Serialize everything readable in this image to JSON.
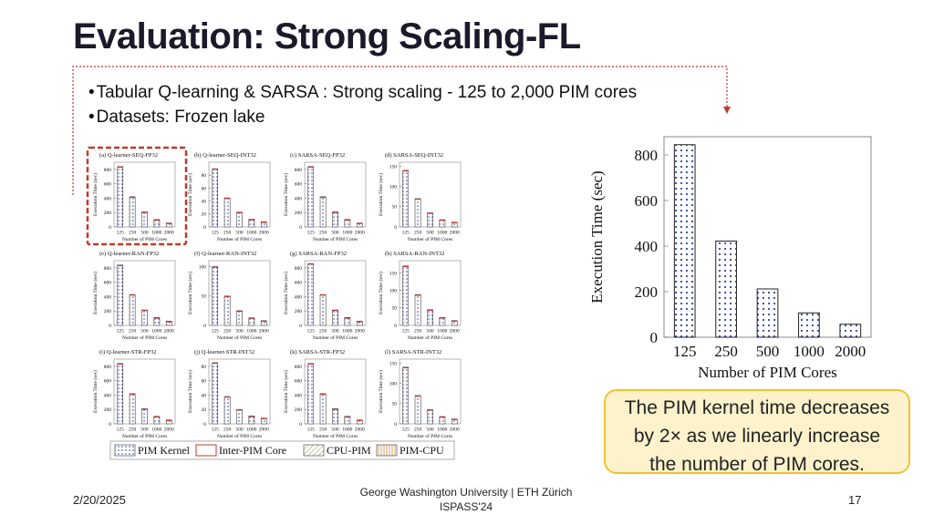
{
  "slide": {
    "title": "Evaluation: Strong Scaling-FL",
    "bullets": [
      "Tabular Q-learning & SARSA : Strong scaling - 125 to 2,000 PIM cores",
      "Datasets: Frozen lake"
    ],
    "callout": [
      "The PIM kernel time decreases",
      "by 2× as we linearly increase",
      "the number of PIM cores."
    ],
    "footer": {
      "date": "2/20/2025",
      "center_line1": "George Washington University | ETH Zürich",
      "center_line2": "ISPASS'24",
      "page": "17"
    },
    "colors": {
      "highlight_red": "#c0392b",
      "callout_border": "#f1c232",
      "callout_fill": "#fdf2cc",
      "bar_dots": "#3344aa"
    }
  },
  "legend": [
    "PIM Kernel",
    "Inter-PIM Core",
    "CPU-PIM",
    "PIM-CPU"
  ],
  "chart_data": [
    {
      "type": "bar",
      "title": "(a) Q-learner-SEQ-FP32",
      "categories": [
        "125",
        "250",
        "500",
        "1000",
        "2000"
      ],
      "values": [
        840,
        420,
        210,
        105,
        55
      ],
      "ylim": [
        0,
        900
      ],
      "yticks": [
        0,
        200,
        400,
        600,
        800
      ],
      "xlabel": "Number of PIM Cores",
      "ylabel": "Execution Time (sec)"
    },
    {
      "type": "bar",
      "title": "(b) Q-learner-SEQ-INT32",
      "categories": [
        "125",
        "250",
        "500",
        "1000",
        "2000"
      ],
      "values": [
        90,
        45,
        23,
        12,
        8
      ],
      "ylim": [
        0,
        100
      ],
      "yticks": [
        0,
        20,
        40,
        60,
        80
      ],
      "xlabel": "Number of PIM Cores",
      "ylabel": "Execution Time (sec)"
    },
    {
      "type": "bar",
      "title": "(c) SARSA-SEQ-FP32",
      "categories": [
        "125",
        "250",
        "500",
        "1000",
        "2000"
      ],
      "values": [
        840,
        420,
        210,
        105,
        55
      ],
      "ylim": [
        0,
        900
      ],
      "yticks": [
        0,
        200,
        400,
        600,
        800
      ],
      "xlabel": "Number of PIM Cores",
      "ylabel": "Execution Time (sec)"
    },
    {
      "type": "bar",
      "title": "(d) SARSA-SEQ-INT32",
      "categories": [
        "125",
        "250",
        "500",
        "1000",
        "2000"
      ],
      "values": [
        140,
        70,
        35,
        18,
        12
      ],
      "ylim": [
        0,
        160
      ],
      "yticks": [
        0,
        50,
        100,
        150
      ],
      "xlabel": "Number of PIM Cores",
      "ylabel": "Execution Time (sec)"
    },
    {
      "type": "bar",
      "title": "(e) Q-learner-RAN-FP32",
      "categories": [
        "125",
        "250",
        "500",
        "1000",
        "2000"
      ],
      "values": [
        840,
        430,
        215,
        110,
        60
      ],
      "ylim": [
        0,
        900
      ],
      "yticks": [
        0,
        200,
        400,
        600,
        800
      ],
      "xlabel": "Number of PIM Cores",
      "ylabel": "Execution Time (sec)"
    },
    {
      "type": "bar",
      "title": "(f) Q-learner-RAN-INT32",
      "categories": [
        "125",
        "250",
        "500",
        "1000",
        "2000"
      ],
      "values": [
        100,
        50,
        25,
        13,
        8
      ],
      "ylim": [
        0,
        110
      ],
      "yticks": [
        0,
        50,
        100
      ],
      "xlabel": "Number of PIM Cores",
      "ylabel": "Execution Time (sec)"
    },
    {
      "type": "bar",
      "title": "(g) SARSA-RAN-FP32",
      "categories": [
        "125",
        "250",
        "500",
        "1000",
        "2000"
      ],
      "values": [
        860,
        430,
        215,
        110,
        60
      ],
      "ylim": [
        0,
        900
      ],
      "yticks": [
        0,
        200,
        400,
        600,
        800
      ],
      "xlabel": "Number of PIM Cores",
      "ylabel": "Execution Time (sec)"
    },
    {
      "type": "bar",
      "title": "(h) SARSA-RAN-INT32",
      "categories": [
        "125",
        "250",
        "500",
        "1000",
        "2000"
      ],
      "values": [
        170,
        88,
        45,
        23,
        14
      ],
      "ylim": [
        0,
        185
      ],
      "yticks": [
        0,
        50,
        100,
        150
      ],
      "xlabel": "Number of PIM Cores",
      "ylabel": "Execution Time (sec)"
    },
    {
      "type": "bar",
      "title": "(i) Q-learner-STR-FP32",
      "categories": [
        "125",
        "250",
        "500",
        "1000",
        "2000"
      ],
      "values": [
        840,
        420,
        210,
        105,
        55
      ],
      "ylim": [
        0,
        900
      ],
      "yticks": [
        0,
        200,
        400,
        600,
        800
      ],
      "xlabel": "Number of PIM Cores",
      "ylabel": "Execution Time (sec)"
    },
    {
      "type": "bar",
      "title": "(j) Q-learner-STR-INT32",
      "categories": [
        "125",
        "250",
        "500",
        "1000",
        "2000"
      ],
      "values": [
        85,
        38,
        20,
        11,
        8
      ],
      "ylim": [
        0,
        90
      ],
      "yticks": [
        0,
        20,
        40,
        60,
        80
      ],
      "xlabel": "Number of PIM Cores",
      "ylabel": "Execution Time (sec)"
    },
    {
      "type": "bar",
      "title": "(k) SARSA-STR-FP32",
      "categories": [
        "125",
        "250",
        "500",
        "1000",
        "2000"
      ],
      "values": [
        840,
        420,
        210,
        105,
        55
      ],
      "ylim": [
        0,
        900
      ],
      "yticks": [
        0,
        200,
        400,
        600,
        800
      ],
      "xlabel": "Number of PIM Cores",
      "ylabel": "Execution Time (sec)"
    },
    {
      "type": "bar",
      "title": "(l) SARSA-STR-INT32",
      "categories": [
        "125",
        "250",
        "500",
        "1000",
        "2000"
      ],
      "values": [
        140,
        70,
        35,
        18,
        12
      ],
      "ylim": [
        0,
        160
      ],
      "yticks": [
        0,
        50,
        100,
        150
      ],
      "xlabel": "Number of PIM Cores",
      "ylabel": "Execution Time (sec)"
    },
    {
      "type": "bar",
      "title": "",
      "categories": [
        "125",
        "250",
        "500",
        "1000",
        "2000"
      ],
      "values": [
        845,
        422,
        212,
        107,
        57
      ],
      "ylim": [
        0,
        880
      ],
      "yticks": [
        0,
        200,
        400,
        600,
        800
      ],
      "xlabel": "Number of PIM Cores",
      "ylabel": "Execution Time (sec)"
    }
  ]
}
